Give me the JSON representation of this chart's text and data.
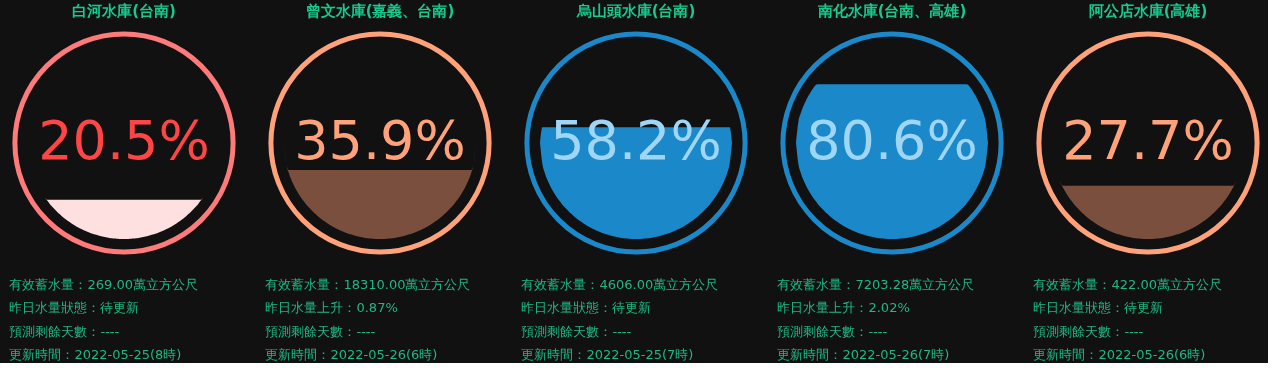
{
  "chart_data": [
    {
      "type": "other",
      "title": "白河水庫(台南)",
      "values": [
        20.5
      ],
      "value_labels": [
        "20.5%"
      ],
      "colors": [
        "#ffe0e0"
      ],
      "annotations": [
        "有效蓄水量：269.00萬立方公尺",
        "昨日水量狀態：待更新",
        "預測剩餘天數：----",
        "更新時間：2022-05-25(8時)"
      ]
    },
    {
      "type": "other",
      "title": "曾文水庫(嘉義、台南)",
      "values": [
        35.9
      ],
      "value_labels": [
        "35.9%"
      ],
      "colors": [
        "#7b4f3e"
      ],
      "annotations": [
        "有效蓄水量：18310.00萬立方公尺",
        "昨日水量上升：0.87%",
        "預測剩餘天數：----",
        "更新時間：2022-05-26(6時)"
      ]
    },
    {
      "type": "other",
      "title": "烏山頭水庫(台南)",
      "values": [
        58.2
      ],
      "value_labels": [
        "58.2%"
      ],
      "colors": [
        "#1a88c9"
      ],
      "annotations": [
        "有效蓄水量：4606.00萬立方公尺",
        "昨日水量狀態：待更新",
        "預測剩餘天數：----",
        "更新時間：2022-05-25(7時)"
      ]
    },
    {
      "type": "other",
      "title": "南化水庫(台南、高雄)",
      "values": [
        80.6
      ],
      "value_labels": [
        "80.6%"
      ],
      "colors": [
        "#1a88c9"
      ],
      "annotations": [
        "有效蓄水量：7203.28萬立方公尺",
        "昨日水量上升：2.02%",
        "預測剩餘天數：----",
        "更新時間：2022-05-26(7時)"
      ]
    },
    {
      "type": "other",
      "title": "阿公店水庫(高雄)",
      "values": [
        27.7
      ],
      "value_labels": [
        "27.7%"
      ],
      "colors": [
        "#7b4f3e"
      ],
      "annotations": [
        "有效蓄水量：422.00萬立方公尺",
        "昨日水量狀態：待更新",
        "預測剩餘天數：----",
        "更新時間：2022-05-26(6時)"
      ]
    }
  ]
}
